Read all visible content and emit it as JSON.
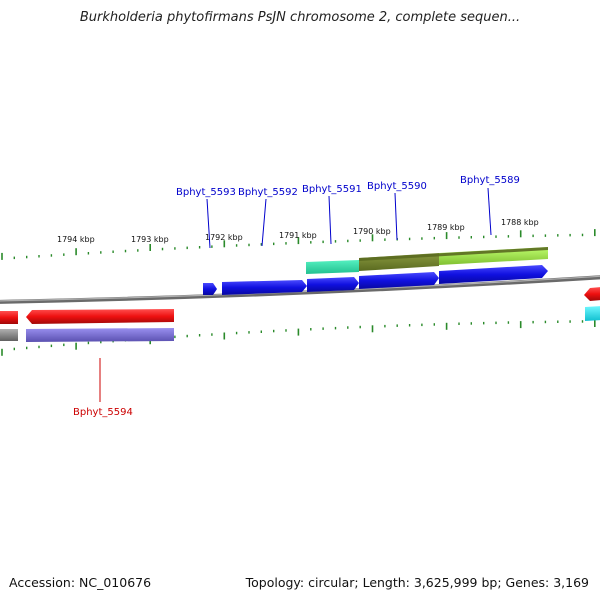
{
  "title": "Burkholderia phytofirmans PsJN chromosome 2, complete sequen...",
  "footer": {
    "accession": "Accession: NC_010676",
    "summary": "Topology: circular; Length: 3,625,999 bp; Genes: 3,169"
  },
  "ticks": [
    "1794 kbp",
    "1793 kbp",
    "1792 kbp",
    "1791 kbp",
    "1790 kbp",
    "1789 kbp",
    "1788 kbp"
  ],
  "genes": [
    {
      "label": "Bphyt_5593",
      "strand": "+",
      "color": "#0000cc"
    },
    {
      "label": "Bphyt_5592",
      "strand": "+",
      "color": "#0000cc"
    },
    {
      "label": "Bphyt_5591",
      "strand": "+",
      "color": "#0000cc"
    },
    {
      "label": "Bphyt_5590",
      "strand": "+",
      "color": "#0000cc"
    },
    {
      "label": "Bphyt_5589",
      "strand": "+",
      "color": "#0000cc"
    },
    {
      "label": "Bphyt_5594",
      "strand": "-",
      "color": "#cc0000"
    }
  ],
  "colors": {
    "forward_cds": "#1a1aee",
    "reverse_cds": "#ee1a1a",
    "backbone": "#888888",
    "tick": "#2a8a2a",
    "feature_teal": "#33ddaa",
    "feature_olive": "#6b7d2a",
    "feature_lime": "#9be040",
    "feature_violet": "#7a6fd6",
    "feature_cyan": "#22e0ee"
  }
}
